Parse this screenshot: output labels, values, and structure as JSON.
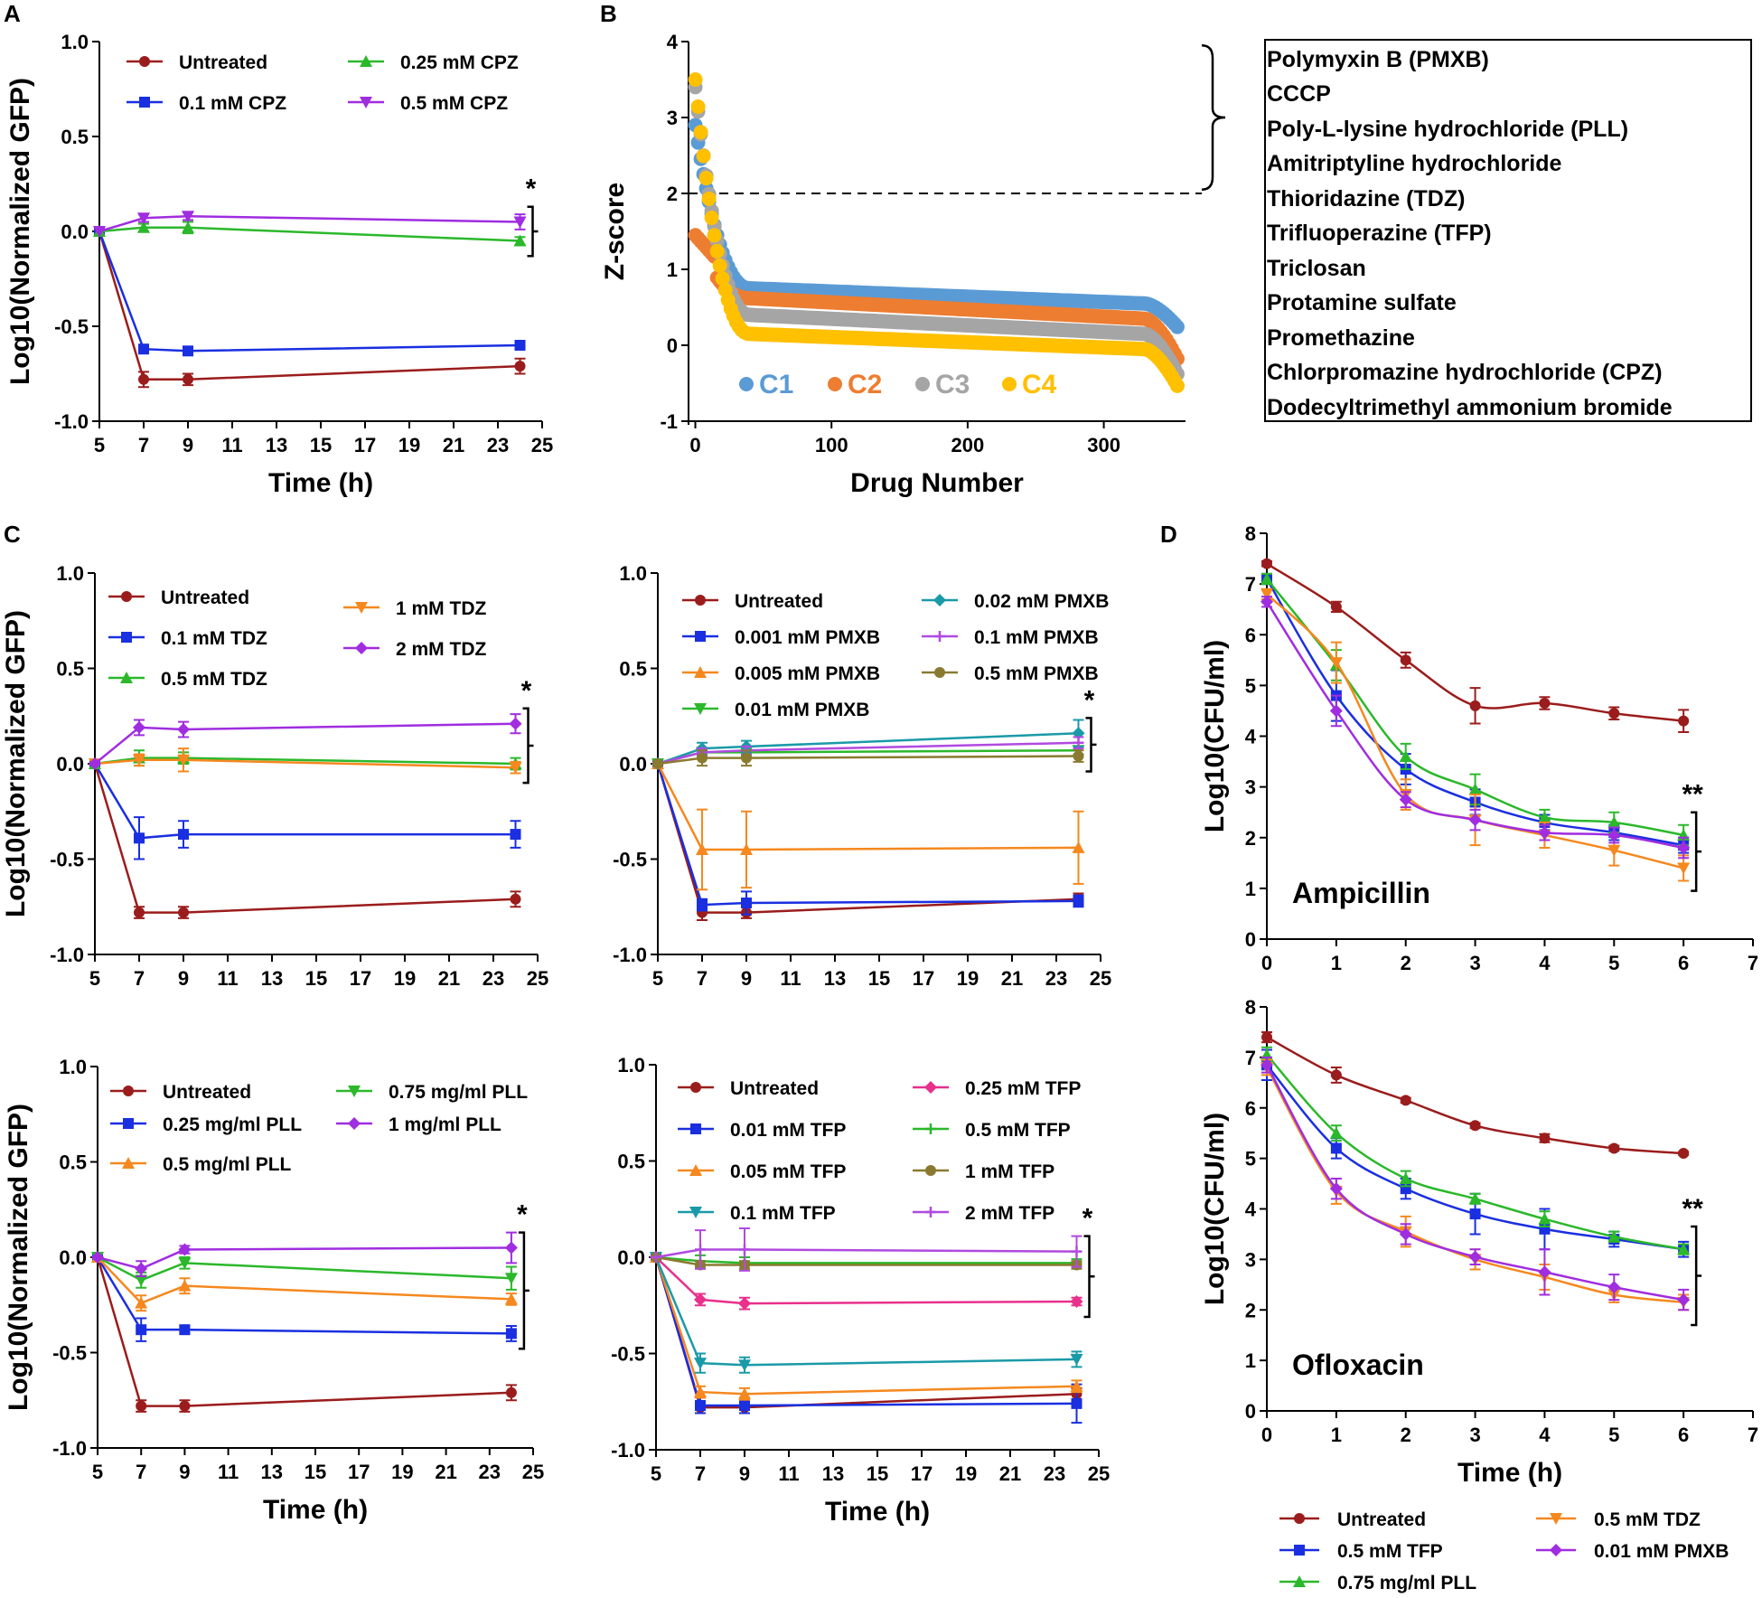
{
  "panel_labels": {
    "A": "A",
    "B": "B",
    "C": "C",
    "D": "D"
  },
  "drug_box": [
    "Polymyxin B (PMXB)",
    "CCCP",
    "Poly-L-lysine hydrochloride  (PLL)",
    "Amitriptyline hydrochloride",
    "Thioridazine  (TDZ)",
    "Trifluoperazine  (TFP)",
    "Triclosan",
    "Protamine sulfate",
    "Promethazine",
    "Chlorpromazine hydrochloride (CPZ)",
    "Dodecyltrimethyl ammonium bromide"
  ],
  "colors": {
    "untreated": "#9b1c1c",
    "blue": "#1a2fe0",
    "green": "#2bb82b",
    "purple": "#a02de0",
    "orange": "#f5881e",
    "teal": "#1a9aa8",
    "pink": "#e8308c",
    "olive": "#8a7a30",
    "lightpurple": "#b04ae0",
    "c1": "#5b9bd5",
    "c2": "#ed7d31",
    "c3": "#a5a5a5",
    "c4": "#ffc000"
  },
  "chart_data": [
    {
      "id": "A",
      "type": "line",
      "xlabel": "Time (h)",
      "ylabel": "Log10(Normalized GFP)",
      "xlim": [
        5,
        25
      ],
      "ylim": [
        -1.0,
        1.0
      ],
      "xticks": [
        "5",
        "7",
        "9",
        "11",
        "13",
        "15",
        "17",
        "19",
        "21",
        "23",
        "25"
      ],
      "yticks": [
        "1.0",
        "0.5",
        "0.0",
        "-0.5",
        "-1.0"
      ],
      "x": [
        5,
        7,
        9,
        24
      ],
      "annotation": "*",
      "series": [
        {
          "name": "Untreated",
          "color": "#9b1c1c",
          "marker": "circle",
          "values": [
            0,
            -0.78,
            -0.78,
            -0.71
          ],
          "err": [
            0,
            0.04,
            0.03,
            0.04
          ]
        },
        {
          "name": "0.1 mM CPZ",
          "color": "#1a2fe0",
          "marker": "square",
          "values": [
            0,
            -0.62,
            -0.63,
            -0.6
          ],
          "err": [
            0,
            0.02,
            0.02,
            0.02
          ]
        },
        {
          "name": "0.25 mM CPZ",
          "color": "#2bb82b",
          "marker": "triangle",
          "values": [
            0,
            0.02,
            0.02,
            -0.05
          ],
          "err": [
            0,
            0.02,
            0.03,
            0.02
          ]
        },
        {
          "name": "0.5 mM CPZ",
          "color": "#a02de0",
          "marker": "tridown",
          "values": [
            0,
            0.07,
            0.08,
            0.05
          ],
          "err": [
            0,
            0.02,
            0.02,
            0.04
          ]
        }
      ]
    },
    {
      "id": "B",
      "type": "scatter",
      "xlabel": "Drug Number",
      "ylabel": "Z-score",
      "xlim": [
        -5,
        360
      ],
      "ylim": [
        -1,
        4
      ],
      "xticks": [
        "0",
        "100",
        "200",
        "300"
      ],
      "yticks": [
        "4",
        "3",
        "2",
        "1",
        "0",
        "-1"
      ],
      "threshold": 2,
      "series": [
        {
          "name": "C1",
          "color": "#5b9bd5",
          "start": 2.9,
          "knee": 0.75,
          "plateau_end": 0.55,
          "final": 0.2
        },
        {
          "name": "C2",
          "color": "#ed7d31",
          "start": 1.45,
          "knee": 0.62,
          "plateau_end": 0.35,
          "final": -0.25
        },
        {
          "name": "C3",
          "color": "#a5a5a5",
          "start": 3.4,
          "knee": 0.4,
          "plateau_end": 0.15,
          "final": -0.45
        },
        {
          "name": "C4",
          "color": "#ffc000",
          "start": 3.5,
          "knee": 0.15,
          "plateau_end": -0.05,
          "final": -0.6
        }
      ]
    },
    {
      "id": "C1",
      "type": "line",
      "xlabel": "",
      "ylabel": "Log10(Normalized GFP)",
      "xlim": [
        5,
        25
      ],
      "ylim": [
        -1.0,
        1.0
      ],
      "xticks": [
        "5",
        "7",
        "9",
        "11",
        "13",
        "15",
        "17",
        "19",
        "21",
        "23",
        "25"
      ],
      "yticks": [
        "1.0",
        "0.5",
        "0.0",
        "-0.5",
        "-1.0"
      ],
      "x": [
        5,
        7,
        9,
        24
      ],
      "annotation": "*",
      "series": [
        {
          "name": "Untreated",
          "color": "#9b1c1c",
          "marker": "circle",
          "values": [
            0,
            -0.78,
            -0.78,
            -0.71
          ],
          "err": [
            0,
            0.03,
            0.03,
            0.04
          ]
        },
        {
          "name": "0.1 mM TDZ",
          "color": "#1a2fe0",
          "marker": "square",
          "values": [
            0,
            -0.39,
            -0.37,
            -0.37
          ],
          "err": [
            0,
            0.11,
            0.07,
            0.07
          ]
        },
        {
          "name": "0.5 mM TDZ",
          "color": "#2bb82b",
          "marker": "triangle",
          "values": [
            0,
            0.03,
            0.03,
            0.0
          ],
          "err": [
            0,
            0.04,
            0.03,
            0.03
          ]
        },
        {
          "name": "1 mM TDZ",
          "color": "#f5881e",
          "marker": "tridown",
          "values": [
            0,
            0.02,
            0.02,
            -0.02
          ],
          "err": [
            0,
            0.03,
            0.06,
            0.03
          ]
        },
        {
          "name": "2 mM TDZ",
          "color": "#a02de0",
          "marker": "diamond",
          "values": [
            0,
            0.19,
            0.18,
            0.21
          ],
          "err": [
            0,
            0.04,
            0.04,
            0.05
          ]
        }
      ]
    },
    {
      "id": "C2",
      "type": "line",
      "xlabel": "",
      "ylabel": "",
      "xlim": [
        5,
        25
      ],
      "ylim": [
        -1.0,
        1.0
      ],
      "xticks": [
        "5",
        "7",
        "9",
        "11",
        "13",
        "15",
        "17",
        "19",
        "21",
        "23",
        "25"
      ],
      "yticks": [
        "1.0",
        "0.5",
        "0.0",
        "-0.5",
        "-1.0"
      ],
      "x": [
        5,
        7,
        9,
        24
      ],
      "annotation": "*",
      "series": [
        {
          "name": "Untreated",
          "color": "#9b1c1c",
          "marker": "circle",
          "values": [
            0,
            -0.78,
            -0.78,
            -0.71
          ],
          "err": [
            0,
            0.04,
            0.03,
            0.03
          ]
        },
        {
          "name": "0.001 mM PMXB",
          "color": "#1a2fe0",
          "marker": "square",
          "values": [
            0,
            -0.74,
            -0.73,
            -0.72
          ],
          "err": [
            0,
            0.03,
            0.06,
            0.03
          ]
        },
        {
          "name": "0.005 mM PMXB",
          "color": "#f5881e",
          "marker": "triangle",
          "values": [
            0,
            -0.45,
            -0.45,
            -0.44
          ],
          "err": [
            0,
            0.21,
            0.2,
            0.19
          ]
        },
        {
          "name": "0.01 mM PMXB",
          "color": "#2bb82b",
          "marker": "tridown",
          "values": [
            0,
            0.06,
            0.06,
            0.07
          ],
          "err": [
            0,
            0.02,
            0.02,
            0.02
          ]
        },
        {
          "name": "0.02 mM PMXB",
          "color": "#1a9aa8",
          "marker": "diamond",
          "values": [
            0,
            0.08,
            0.09,
            0.16
          ],
          "err": [
            0,
            0.03,
            0.03,
            0.07
          ]
        },
        {
          "name": "0.1 mM PMXB",
          "color": "#b04ae0",
          "marker": "cross",
          "values": [
            0,
            0.06,
            0.07,
            0.11
          ],
          "err": [
            0,
            0.02,
            0.02,
            0.03
          ]
        },
        {
          "name": "0.5 mM PMXB",
          "color": "#8a7a30",
          "marker": "circle",
          "values": [
            0,
            0.03,
            0.03,
            0.04
          ],
          "err": [
            0,
            0.04,
            0.04,
            0.03
          ]
        }
      ]
    },
    {
      "id": "C3",
      "type": "line",
      "xlabel": "Time (h)",
      "ylabel": "Log10(Normalized GFP)",
      "xlim": [
        5,
        25
      ],
      "ylim": [
        -1.0,
        1.0
      ],
      "xticks": [
        "5",
        "7",
        "9",
        "11",
        "13",
        "15",
        "17",
        "19",
        "21",
        "23",
        "25"
      ],
      "yticks": [
        "1.0",
        "0.5",
        "0.0",
        "-0.5",
        "-1.0"
      ],
      "x": [
        5,
        7,
        9,
        24
      ],
      "annotation": "*",
      "series": [
        {
          "name": "Untreated",
          "color": "#9b1c1c",
          "marker": "circle",
          "values": [
            0,
            -0.78,
            -0.78,
            -0.71
          ],
          "err": [
            0,
            0.03,
            0.03,
            0.04
          ]
        },
        {
          "name": "0.25 mg/ml PLL",
          "color": "#1a2fe0",
          "marker": "square",
          "values": [
            0,
            -0.38,
            -0.38,
            -0.4
          ],
          "err": [
            0,
            0.06,
            0.02,
            0.04
          ]
        },
        {
          "name": "0.5 mg/ml PLL",
          "color": "#f5881e",
          "marker": "triangle",
          "values": [
            0,
            -0.24,
            -0.15,
            -0.22
          ],
          "err": [
            0,
            0.04,
            0.04,
            0.03
          ]
        },
        {
          "name": "0.75 mg/ml PLL",
          "color": "#2bb82b",
          "marker": "tridown",
          "values": [
            0,
            -0.12,
            -0.03,
            -0.11
          ],
          "err": [
            0,
            0.04,
            0.03,
            0.06
          ]
        },
        {
          "name": "1 mg/ml PLL",
          "color": "#a02de0",
          "marker": "diamond",
          "values": [
            0,
            -0.06,
            0.04,
            0.05
          ],
          "err": [
            0,
            0.04,
            0.02,
            0.08
          ]
        }
      ]
    },
    {
      "id": "C4",
      "type": "line",
      "xlabel": "Time (h)",
      "ylabel": "",
      "xlim": [
        5,
        25
      ],
      "ylim": [
        -1.0,
        1.0
      ],
      "xticks": [
        "5",
        "7",
        "9",
        "11",
        "13",
        "15",
        "17",
        "19",
        "21",
        "23",
        "25"
      ],
      "yticks": [
        "1.0",
        "0.5",
        "0.0",
        "-0.5",
        "-1.0"
      ],
      "x": [
        5,
        7,
        9,
        24
      ],
      "annotation": "*",
      "series": [
        {
          "name": "Untreated",
          "color": "#9b1c1c",
          "marker": "circle",
          "values": [
            0,
            -0.78,
            -0.78,
            -0.71
          ],
          "err": [
            0,
            0.03,
            0.03,
            0.03
          ]
        },
        {
          "name": "0.01 mM TFP",
          "color": "#1a2fe0",
          "marker": "square",
          "values": [
            0,
            -0.77,
            -0.77,
            -0.76
          ],
          "err": [
            0,
            0.04,
            0.04,
            0.1
          ]
        },
        {
          "name": "0.05 mM TFP",
          "color": "#f5881e",
          "marker": "triangle",
          "values": [
            0,
            -0.7,
            -0.71,
            -0.67
          ],
          "err": [
            0,
            0.03,
            0.03,
            0.03
          ]
        },
        {
          "name": "0.1 mM TFP",
          "color": "#1a9aa8",
          "marker": "tridown",
          "values": [
            0,
            -0.55,
            -0.56,
            -0.53
          ],
          "err": [
            0,
            0.05,
            0.04,
            0.04
          ]
        },
        {
          "name": "0.25 mM TFP",
          "color": "#e8308c",
          "marker": "diamond",
          "values": [
            0,
            -0.22,
            -0.24,
            -0.23
          ],
          "err": [
            0,
            0.03,
            0.03,
            0.02
          ]
        },
        {
          "name": "0.5 mM TFP",
          "color": "#2bb82b",
          "marker": "cross",
          "values": [
            0,
            -0.02,
            -0.03,
            -0.03
          ],
          "err": [
            0,
            0.03,
            0.03,
            0.02
          ]
        },
        {
          "name": "1 mM TFP",
          "color": "#8a7a30",
          "marker": "circle",
          "values": [
            0,
            -0.04,
            -0.04,
            -0.04
          ],
          "err": [
            0,
            0.02,
            0.02,
            0.02
          ]
        },
        {
          "name": "2 mM TFP",
          "color": "#b04ae0",
          "marker": "cross",
          "values": [
            0,
            0.04,
            0.04,
            0.03
          ],
          "err": [
            0,
            0.1,
            0.11,
            0.08
          ]
        }
      ]
    },
    {
      "id": "D1",
      "type": "line",
      "title": "Ampicillin",
      "xlabel": "",
      "ylabel": "Log10(CFU/ml)",
      "xlim": [
        0,
        7
      ],
      "ylim": [
        0,
        8
      ],
      "xticks": [
        "0",
        "1",
        "2",
        "3",
        "4",
        "5",
        "6",
        "7"
      ],
      "yticks": [
        "8",
        "7",
        "6",
        "5",
        "4",
        "3",
        "2",
        "1",
        "0"
      ],
      "x": [
        0,
        1,
        2,
        3,
        4,
        5,
        6
      ],
      "annotation": "**",
      "series": [
        {
          "name": "Untreated",
          "color": "#9b1c1c",
          "marker": "circle",
          "values": [
            7.4,
            6.55,
            5.5,
            4.6,
            4.65,
            4.45,
            4.3
          ],
          "err": [
            0.05,
            0.1,
            0.15,
            0.35,
            0.12,
            0.12,
            0.22
          ]
        },
        {
          "name": "0.5 mM TFP",
          "color": "#1a2fe0",
          "marker": "square",
          "values": [
            7.1,
            4.8,
            3.35,
            2.7,
            2.3,
            2.1,
            1.85
          ],
          "err": [
            0.1,
            0.5,
            0.3,
            0.25,
            0.15,
            0.15,
            0.15
          ]
        },
        {
          "name": "0.75 mg/ml PLL",
          "color": "#2bb82b",
          "marker": "triangle",
          "values": [
            7.1,
            5.4,
            3.6,
            2.95,
            2.4,
            2.3,
            2.05
          ],
          "err": [
            0.1,
            0.3,
            0.25,
            0.3,
            0.15,
            0.2,
            0.2
          ]
        },
        {
          "name": "0.5 mM TDZ",
          "color": "#f5881e",
          "marker": "tridown",
          "values": [
            6.8,
            5.45,
            2.85,
            2.35,
            2.05,
            1.75,
            1.4
          ],
          "err": [
            0.1,
            0.4,
            0.3,
            0.5,
            0.25,
            0.3,
            0.25
          ]
        },
        {
          "name": "0.01 mM PMXB",
          "color": "#a02de0",
          "marker": "diamond",
          "values": [
            6.65,
            4.5,
            2.75,
            2.35,
            2.1,
            2.05,
            1.8
          ],
          "err": [
            0.1,
            0.3,
            0.15,
            0.2,
            0.15,
            0.15,
            0.2
          ]
        }
      ]
    },
    {
      "id": "D2",
      "type": "line",
      "title": "Ofloxacin",
      "xlabel": "Time (h)",
      "ylabel": "Log10(CFU/ml)",
      "xlim": [
        0,
        7
      ],
      "ylim": [
        0,
        8
      ],
      "xticks": [
        "0",
        "1",
        "2",
        "3",
        "4",
        "5",
        "6",
        "7"
      ],
      "yticks": [
        "8",
        "7",
        "6",
        "5",
        "4",
        "3",
        "2",
        "1",
        "0"
      ],
      "x": [
        0,
        1,
        2,
        3,
        4,
        5,
        6
      ],
      "annotation": "**",
      "series": [
        {
          "name": "Untreated",
          "color": "#9b1c1c",
          "marker": "circle",
          "values": [
            7.4,
            6.65,
            6.15,
            5.65,
            5.4,
            5.2,
            5.1
          ],
          "err": [
            0.1,
            0.15,
            0.05,
            0.05,
            0.08,
            0.05,
            0.03
          ]
        },
        {
          "name": "0.5 mM TFP",
          "color": "#1a2fe0",
          "marker": "square",
          "values": [
            6.85,
            5.2,
            4.4,
            3.9,
            3.6,
            3.4,
            3.2
          ],
          "err": [
            0.3,
            0.2,
            0.2,
            0.4,
            0.4,
            0.15,
            0.15
          ]
        },
        {
          "name": "0.75 mg/ml PLL",
          "color": "#2bb82b",
          "marker": "triangle",
          "values": [
            7.05,
            5.5,
            4.6,
            4.2,
            3.8,
            3.45,
            3.2
          ],
          "err": [
            0.15,
            0.15,
            0.15,
            0.1,
            0.15,
            0.1,
            0.1
          ]
        },
        {
          "name": "0.5 mM TDZ",
          "color": "#f5881e",
          "marker": "tridown",
          "values": [
            6.8,
            4.35,
            3.55,
            3.0,
            2.65,
            2.3,
            2.15
          ],
          "err": [
            0.15,
            0.25,
            0.3,
            0.2,
            0.25,
            0.15,
            0.15
          ]
        },
        {
          "name": "0.01 mM PMXB",
          "color": "#a02de0",
          "marker": "diamond",
          "values": [
            6.85,
            4.4,
            3.5,
            3.05,
            2.75,
            2.45,
            2.2
          ],
          "err": [
            0.15,
            0.2,
            0.2,
            0.15,
            0.45,
            0.25,
            0.2
          ]
        }
      ]
    }
  ]
}
